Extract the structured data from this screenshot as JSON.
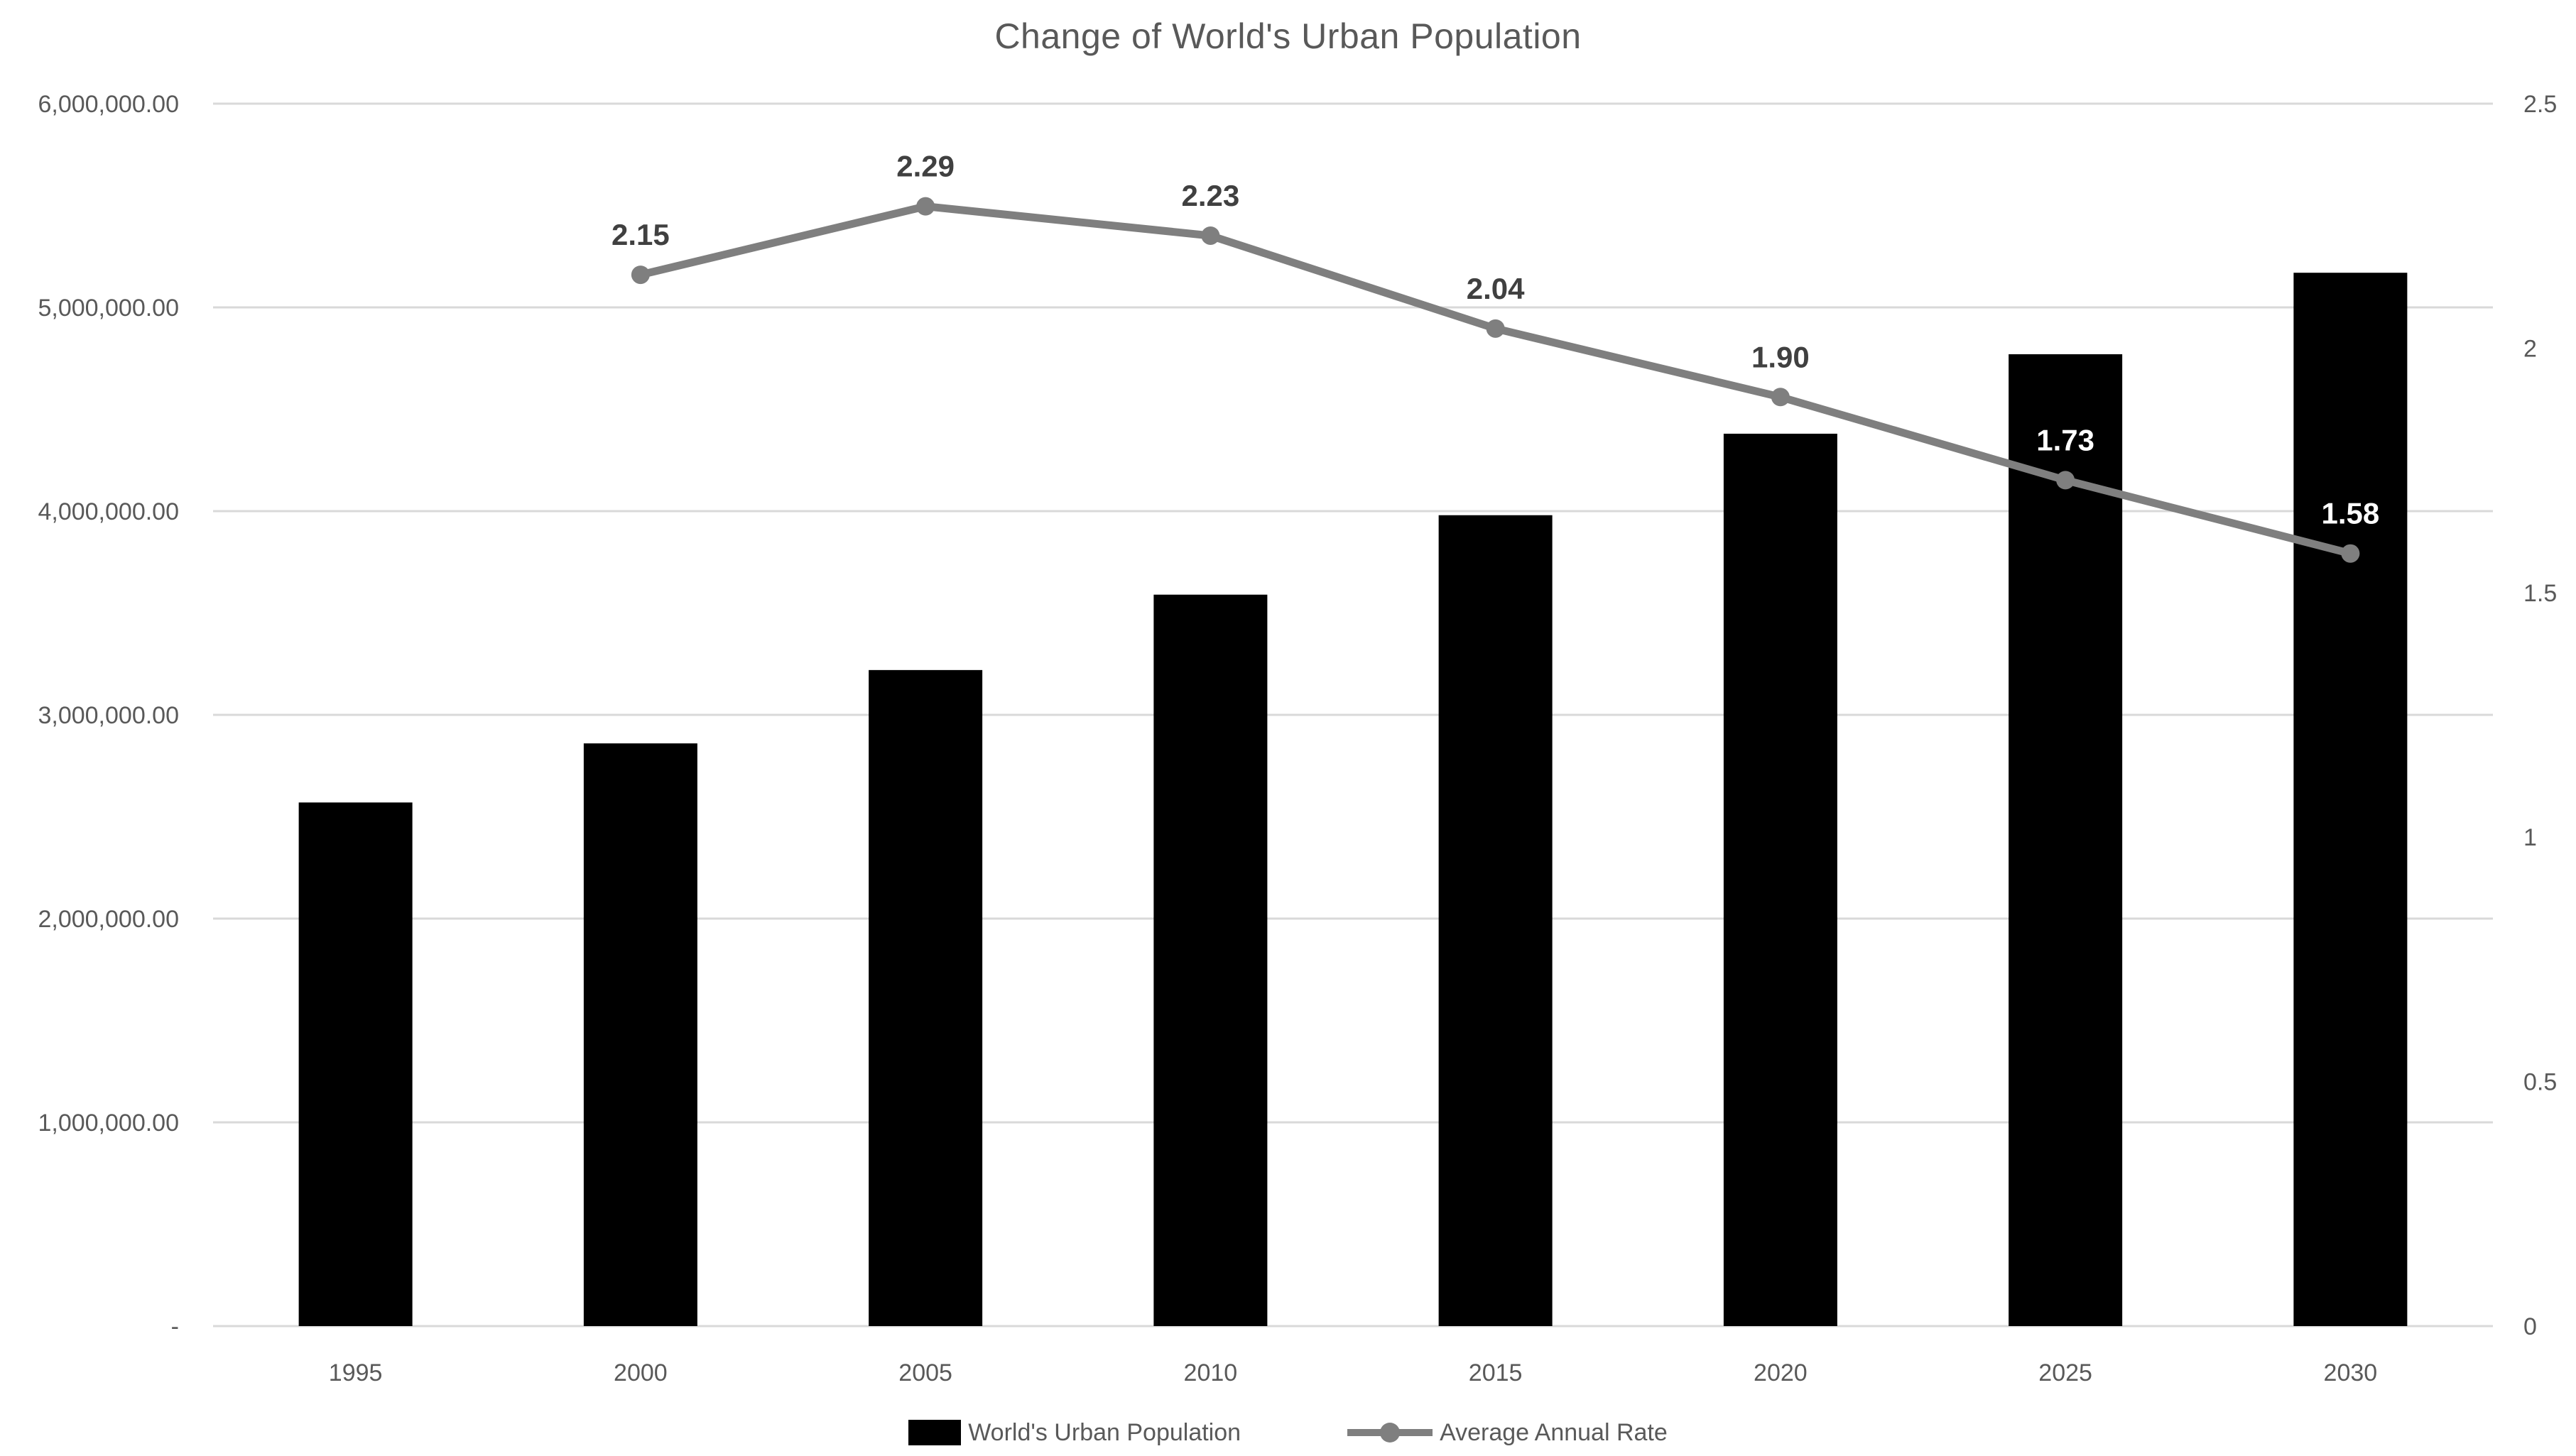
{
  "chart_data": {
    "type": "combo-bar-line",
    "title": "Change of World's Urban Population",
    "categories": [
      "1995",
      "2000",
      "2005",
      "2010",
      "2015",
      "2020",
      "2025",
      "2030"
    ],
    "series": [
      {
        "name": "World's Urban Population",
        "chart_type": "bar",
        "axis": "left",
        "color": "#000000",
        "values": [
          2570000,
          2860000,
          3220000,
          3590000,
          3980000,
          4380000,
          4770000,
          5170000
        ]
      },
      {
        "name": "Average Annual Rate",
        "chart_type": "line",
        "axis": "right",
        "color": "#7F7F7F",
        "values": [
          null,
          2.15,
          2.29,
          2.23,
          2.04,
          1.9,
          1.73,
          1.58
        ],
        "data_labels": [
          null,
          "2.15",
          "2.29",
          "2.23",
          "2.04",
          "1.90",
          "1.73",
          "1.58"
        ],
        "data_label_colors": [
          null,
          "#404040",
          "#404040",
          "#404040",
          "#404040",
          "#404040",
          "#FFFFFF",
          "#FFFFFF"
        ]
      }
    ],
    "left_axis": {
      "min": 0,
      "max": 6000000,
      "step": 1000000,
      "tick_labels_top_to_bottom": [
        "6,000,000.00",
        "5,000,000.00",
        "4,000,000.00",
        "3,000,000.00",
        "2,000,000.00",
        "1,000,000.00",
        "-"
      ]
    },
    "right_axis": {
      "min": 0,
      "max": 2.5,
      "step": 0.5,
      "tick_labels_top_to_bottom": [
        "2.5",
        "2",
        "1.5",
        "1",
        "0.5",
        "0"
      ]
    },
    "grid": true,
    "legend_position": "bottom",
    "colors": {
      "background": "#FFFFFF",
      "gridline": "#D9D9D9",
      "axis_text": "#595959",
      "title_text": "#595959",
      "data_label_text": "#404040",
      "bar": "#000000",
      "line": "#7F7F7F"
    }
  }
}
